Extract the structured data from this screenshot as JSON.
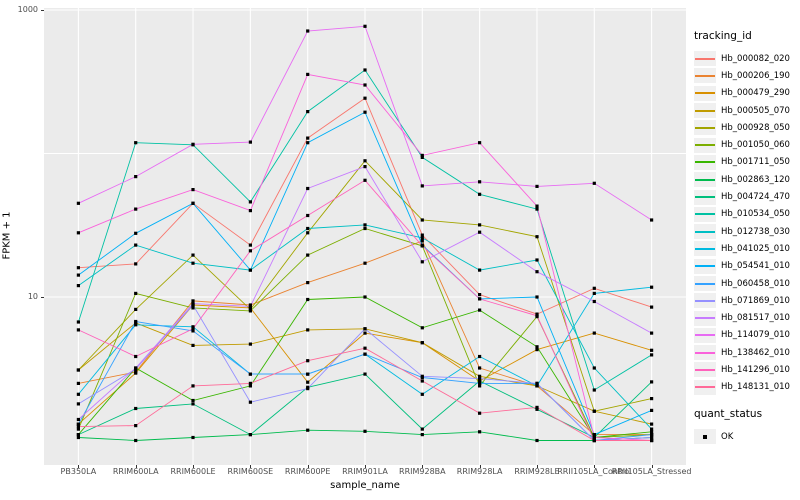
{
  "chart_data": {
    "type": "line",
    "title": "",
    "xlabel": "sample_name",
    "ylabel": "FPKM + 1",
    "log_y": true,
    "ylim": [
      0.67,
      1035
    ],
    "y_ticks": [
      {
        "label": "1000",
        "value": 1000
      },
      {
        "label": "10",
        "value": 10
      }
    ],
    "y_gridlines": [
      10,
      100,
      1000
    ],
    "grid": "on",
    "panel_background": "#EBEBEB",
    "gridline_color": "#FFFFFF",
    "point_color": "#000000",
    "point_shape": "square",
    "legend_position": "right",
    "legend_title": "tracking_id",
    "legend2": {
      "title": "quant_status",
      "items": [
        {
          "label": "OK"
        }
      ]
    },
    "categories": [
      "PB350LA",
      "RRIM600LA",
      "RRIM600LE",
      "RRIM600SE",
      "RRIM600PE",
      "RRIM901LA",
      "RRIM928BA",
      "RRIM928LA",
      "RRIM928LE",
      "RRII105LA_Control",
      "RRII105LA_Stressed"
    ],
    "series": [
      {
        "name": "Hb_000082_020",
        "color": "#F8766D",
        "values": [
          16,
          17,
          45,
          23,
          128,
          243,
          27,
          10.4,
          7.6,
          11.5,
          8.5
        ]
      },
      {
        "name": "Hb_000206_190",
        "color": "#EA8331",
        "values": [
          2.5,
          3.0,
          9.4,
          8.8,
          12.6,
          17.2,
          24.6,
          3.2,
          2.4,
          1.1,
          1.1
        ]
      },
      {
        "name": "Hb_000479_290",
        "color": "#D89000",
        "values": [
          1.3,
          2.95,
          8.8,
          8.4,
          2.55,
          5.6,
          4.8,
          2.6,
          4.3,
          5.6,
          4.25
        ]
      },
      {
        "name": "Hb_000505_070",
        "color": "#C09B00",
        "values": [
          3.1,
          6.6,
          4.6,
          4.7,
          5.9,
          6.0,
          4.8,
          2.8,
          2.4,
          1.6,
          1.3
        ]
      },
      {
        "name": "Hb_000928_050",
        "color": "#A3A500",
        "values": [
          3.1,
          8.2,
          19.6,
          8.2,
          28,
          89,
          34.4,
          31.8,
          26.3,
          1.6,
          1.96
        ]
      },
      {
        "name": "Hb_001050_060",
        "color": "#7CAE00",
        "values": [
          1.2,
          10.6,
          8.4,
          8.0,
          19.6,
          30,
          22.7,
          2.4,
          7.3,
          1.05,
          1.1
        ]
      },
      {
        "name": "Hb_001711_050",
        "color": "#39B600",
        "values": [
          1.1,
          3.2,
          1.9,
          2.4,
          9.6,
          10,
          6.1,
          8.1,
          4.5,
          1.05,
          1.15
        ]
      },
      {
        "name": "Hb_002863_120",
        "color": "#00BB4E",
        "values": [
          1.05,
          1.0,
          1.05,
          1.1,
          1.18,
          1.16,
          1.1,
          1.15,
          1.0,
          1.0,
          1.05
        ]
      },
      {
        "name": "Hb_004724_470",
        "color": "#00BF7D",
        "values": [
          1.1,
          1.67,
          1.8,
          1.1,
          2.35,
          2.9,
          1.2,
          2.6,
          1.65,
          1.05,
          2.56
        ]
      },
      {
        "name": "Hb_010534_050",
        "color": "#00C1A3",
        "values": [
          6.7,
          119,
          115,
          46,
          196,
          382,
          94,
          52,
          41,
          2.25,
          3.95
        ]
      },
      {
        "name": "Hb_012738_030",
        "color": "#00BFC4",
        "values": [
          12,
          23,
          17.2,
          15.4,
          30,
          31.8,
          25.8,
          15.4,
          18.1,
          3.2,
          1.2
        ]
      },
      {
        "name": "Hb_041025_010",
        "color": "#00BAE0",
        "values": [
          2.1,
          6.4,
          6.2,
          2.9,
          2.9,
          4.0,
          2.1,
          3.85,
          2.4,
          10.6,
          11.7
        ]
      },
      {
        "name": "Hb_054541_010",
        "color": "#00B0F6",
        "values": [
          14.2,
          27.8,
          45,
          15.4,
          119,
          194,
          23,
          9.7,
          10,
          1.1,
          1.62
        ]
      },
      {
        "name": "Hb_060458_010",
        "color": "#35A2FF",
        "values": [
          1.3,
          6.75,
          5.8,
          2.9,
          2.9,
          4.0,
          2.75,
          2.5,
          2.5,
          1.0,
          1.1
        ]
      },
      {
        "name": "Hb_071869_010",
        "color": "#9590FF",
        "values": [
          1.8,
          3.15,
          8.8,
          1.85,
          2.3,
          6.0,
          2.8,
          2.7,
          2.5,
          1.0,
          1.05
        ]
      },
      {
        "name": "Hb_081517_010",
        "color": "#C77CFF",
        "values": [
          1.4,
          3.2,
          9.0,
          8.6,
          57,
          81,
          17.6,
          28.3,
          15,
          9.3,
          5.6
        ]
      },
      {
        "name": "Hb_114079_010",
        "color": "#E76BF3",
        "values": [
          45,
          69,
          116,
          120,
          714,
          770,
          59.5,
          63.5,
          59,
          62,
          34.4
        ]
      },
      {
        "name": "Hb_138462_010",
        "color": "#FA62DB",
        "values": [
          28,
          41,
          56,
          40,
          356,
          300,
          97,
          119,
          43,
          1.05,
          1.0
        ]
      },
      {
        "name": "Hb_141296_010",
        "color": "#FF62BC",
        "values": [
          5.9,
          3.85,
          6.0,
          21,
          37,
          65,
          22.7,
          9.7,
          7.4,
          1.0,
          1.0
        ]
      },
      {
        "name": "Hb_148131_010",
        "color": "#FF6A98",
        "values": [
          1.25,
          1.27,
          2.4,
          2.5,
          3.6,
          4.4,
          2.6,
          1.55,
          1.7,
          1.0,
          1.0
        ]
      }
    ]
  }
}
